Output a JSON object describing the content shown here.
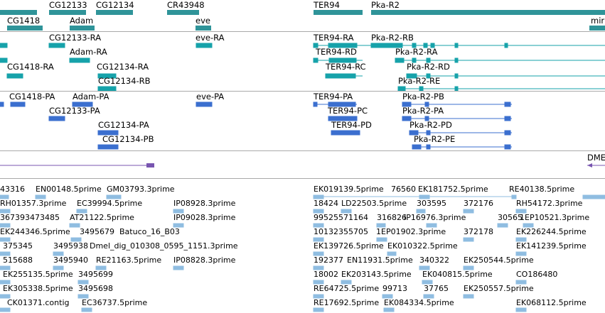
{
  "colors": {
    "gene": "#2f9499",
    "transcript": "#16a2aa",
    "protein": "#3b6fcf",
    "misc": "#7855b0",
    "est": "#8fbde1",
    "divider": "#a9a9a9"
  },
  "tracks": {
    "genes": {
      "labels": [
        "CG12133",
        "CG12134",
        "CR43948",
        "TER94",
        "Pka-R2",
        "CG1418",
        "Adam",
        "eve",
        "mir"
      ]
    },
    "transcripts": {
      "labels": [
        "CG12133-RA",
        "eve-RA",
        "TER94-RA",
        "Pka-R2-RB",
        "Adam-RA",
        "TER94-RD",
        "Pka-R2-RA",
        "CG1418-RA",
        "CG12134-RA",
        "TER94-RC",
        "Pka-R2-RD",
        "CG12134-RB",
        "Pka-R2-RE"
      ]
    },
    "proteins": {
      "labels": [
        "CG1418-PA",
        "Adam-PA",
        "eve-PA",
        "TER94-PA",
        "Pka-R2-PB",
        "CG12133-PA",
        "TER94-PC",
        "Pka-R2-PA",
        "CG12134-PA",
        "TER94-PD",
        "Pka-R2-PD",
        "CG12134-PB",
        "Pka-R2-PE"
      ]
    },
    "misc": {
      "labels": [
        "DME"
      ]
    },
    "ests": {
      "labels": [
        "43316",
        "EN00148.5prime",
        "GM03793.3prime",
        "EK019139.5prime",
        "76560",
        "EK181752.5prime",
        "RE40138.5prime",
        "RH01357.3prime",
        "EC39994.5prime",
        "IP08928.3prime",
        "18424",
        "LD22503.5prime",
        "303595",
        "372176",
        "RH54172.3prime",
        "367393473485",
        "AT21122.5prime",
        "IP09028.3prime",
        "99525571164",
        "316826",
        "IP16976.3prime",
        "30565",
        "1EP10521.3prime",
        "EK244346.5prime",
        "3495679",
        "Batuco_16_B03",
        "10132355705",
        "1EP01902.3prime",
        "372178",
        "EK226244.5prime",
        "375345",
        "3495938",
        "Dmel_dig_010308_0595_1151.3prime",
        "EK139726.5prime",
        "EK010322.5prime",
        "EK141239.5prime",
        "515688",
        "3495940",
        "RE21163.5prime",
        "IP08828.3prime",
        "192377",
        "EN11931.5prime",
        "340322",
        "EK250544.5prime",
        "EK255135.5prime",
        "3495699",
        "18002",
        "EK203143.5prime",
        "EK040815.5prime",
        "CO186480",
        "EK305338.5prime",
        "3495698",
        "RE64725.5prime",
        "99713",
        "37765",
        "EK250557.5prime",
        "CK01371.contig",
        "EC36737.5prime",
        "RE17692.5prime",
        "EK084334.5prime",
        "EK068112.5prime"
      ]
    }
  }
}
